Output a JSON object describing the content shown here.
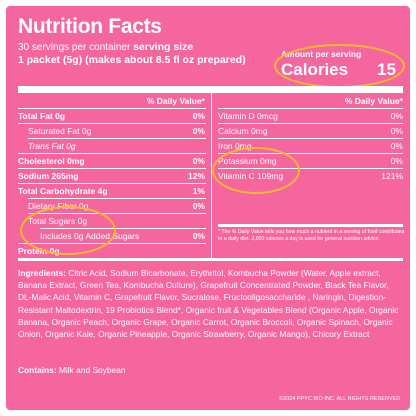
{
  "title": "Nutrition Facts",
  "servings": {
    "per_container": "30 servings per container",
    "size_label": "serving size",
    "size_value": "1 packet (5g) (makes about 8.5 fl oz prepared)"
  },
  "calories": {
    "amount_label": "Amount per serving",
    "label": "Calories",
    "value": "15"
  },
  "left_header": "% Daily Value*",
  "right_header": "% Daily Value*",
  "left_rows": [
    {
      "label": "Total Fat 0g",
      "value": "0%"
    },
    {
      "label": "Saturated Fat 0g",
      "value": "0%"
    },
    {
      "label": "Trans Fat 0g",
      "value": ""
    },
    {
      "label": "Cholesterol 0mg",
      "value": "0%"
    },
    {
      "label": "Sodium 265mg",
      "value": "12%"
    },
    {
      "label": "Total Carbohydrate 4g",
      "value": "1%"
    },
    {
      "label": "Dietary Fiber 0g",
      "value": "0%"
    },
    {
      "label": "Total Sugars 0g",
      "value": ""
    },
    {
      "label": "Includes 0g Added Sugars",
      "value": "0%"
    },
    {
      "label": "Protein 0g",
      "value": ""
    }
  ],
  "right_rows": [
    {
      "label": "Vitamin D 0mcg",
      "value": "0%"
    },
    {
      "label": "Calcium 0mg",
      "value": "0%"
    },
    {
      "label": "Iron 0mg",
      "value": "0%"
    },
    {
      "label": "Potassium 0mg",
      "value": "0%"
    },
    {
      "label": "Vitamin C 109mg",
      "value": "121%"
    }
  ],
  "footnote": "* The % Daily Value tells you how much a nutrient in a serving of food contributes to a daily diet. 2,000 calories a day is used for general nutrition advice.",
  "ingredients_label": "Ingredients:",
  "ingredients_text": "Citric Acid, Sodium Bicarbonate, Erythritol, Kombucha Powder (Water, Apple extract, Banana Extract, Green Tea, Kombucha Culture), Grapefruit Concentrated Powder, Black Tea Flavor, DL-Malic Acid, Vitamin C, Grapefruit Flavor, Sucralose, Fructooligosaccharide , Naringin, Digestion-Resistant Maltodextrin, 19 Probiotics Blend*, Organic fruit & Vegetables Blend (Organic Apple, Organic Banana, Organic Peach, Organic Grape, Organic Carrot, Organic Broccoli, Organic Spinach, Organic Onion, Organic Kale, Organic Pineapple, Organic Strawberry, Organic Mango), Chicory Extract",
  "contains_label": "Contains:",
  "contains_text": "Milk and Soybean",
  "copyright": "©2024 PPYC BIO INC. ALL RIGHTS RESERVED",
  "colors": {
    "background": "#f5669e",
    "text": "#ffffff",
    "highlight_circle": "#f6b92b"
  }
}
